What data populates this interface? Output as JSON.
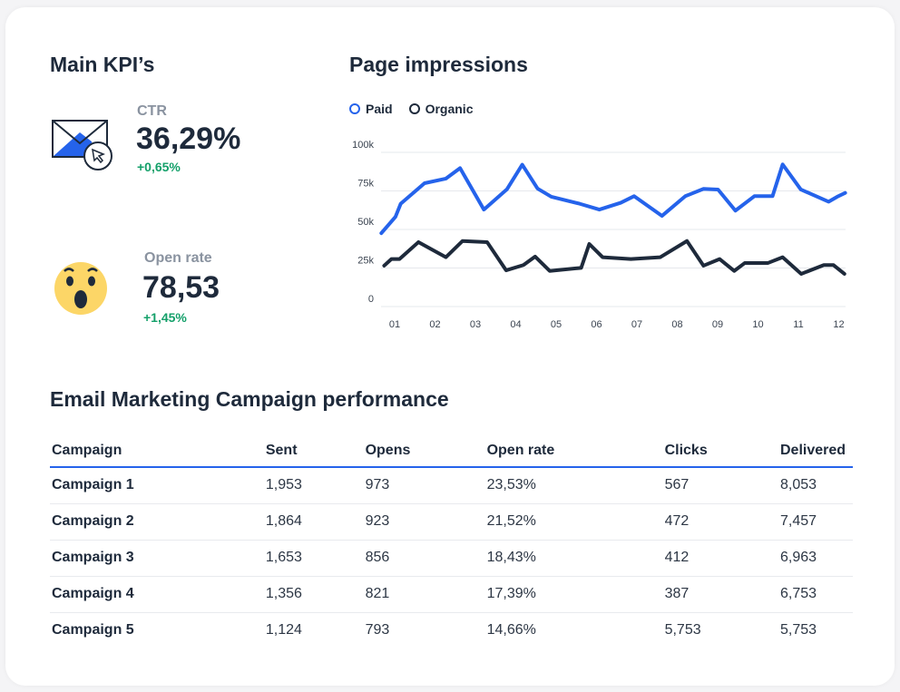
{
  "kpi": {
    "title": "Main KPI’s",
    "ctr": {
      "label": "CTR",
      "value": "36,29%",
      "delta": "+0,65%",
      "icon": "envelope-click-icon"
    },
    "open_rate": {
      "label": "Open rate",
      "value": "78,53",
      "delta": "+1,45%",
      "icon": "surprised-emoji-icon"
    }
  },
  "chart_title": "Page impressions",
  "chart_data": {
    "type": "line",
    "title": "Page impressions",
    "legend": "top-left",
    "grid": true,
    "x_ticks": [
      "01",
      "02",
      "03",
      "04",
      "05",
      "06",
      "07",
      "08",
      "09",
      "10",
      "11",
      "12"
    ],
    "y_ticks": [
      "0",
      "25k",
      "50k",
      "75k",
      "100k"
    ],
    "ylim": [
      0,
      100000
    ],
    "xlim": [
      0.6,
      12.2
    ],
    "series": [
      {
        "name": "Paid",
        "color": "#2563eb",
        "points": [
          [
            0.67,
            47600
          ],
          [
            1.02,
            58200
          ],
          [
            1.15,
            66700
          ],
          [
            1.74,
            80000
          ],
          [
            2.27,
            83000
          ],
          [
            2.62,
            89800
          ],
          [
            3.21,
            62900
          ],
          [
            3.78,
            76000
          ],
          [
            4.16,
            92000
          ],
          [
            4.54,
            76500
          ],
          [
            4.88,
            71200
          ],
          [
            5.58,
            66700
          ],
          [
            6.07,
            62900
          ],
          [
            6.6,
            67300
          ],
          [
            6.93,
            71600
          ],
          [
            7.62,
            58800
          ],
          [
            8.2,
            71600
          ],
          [
            8.65,
            76300
          ],
          [
            9.01,
            75900
          ],
          [
            9.44,
            62200
          ],
          [
            9.91,
            71600
          ],
          [
            10.36,
            71600
          ],
          [
            10.61,
            92200
          ],
          [
            11.06,
            75900
          ],
          [
            11.75,
            68000
          ],
          [
            11.96,
            71200
          ],
          [
            12.16,
            73700
          ]
        ]
      },
      {
        "name": "Organic",
        "color": "#1e2a3b",
        "points": [
          [
            0.74,
            26500
          ],
          [
            0.92,
            30800
          ],
          [
            1.12,
            30800
          ],
          [
            1.59,
            41800
          ],
          [
            2.27,
            32000
          ],
          [
            2.68,
            42500
          ],
          [
            3.29,
            41800
          ],
          [
            3.76,
            23500
          ],
          [
            4.19,
            26900
          ],
          [
            4.48,
            32400
          ],
          [
            4.84,
            23100
          ],
          [
            5.62,
            25100
          ],
          [
            5.82,
            40600
          ],
          [
            6.15,
            32000
          ],
          [
            6.85,
            30800
          ],
          [
            7.58,
            32000
          ],
          [
            8.24,
            42500
          ],
          [
            8.65,
            26500
          ],
          [
            9.05,
            30800
          ],
          [
            9.41,
            23100
          ],
          [
            9.67,
            28200
          ],
          [
            10.24,
            28200
          ],
          [
            10.61,
            32000
          ],
          [
            11.07,
            21200
          ],
          [
            11.63,
            26900
          ],
          [
            11.87,
            26900
          ],
          [
            12.14,
            21200
          ]
        ]
      }
    ]
  },
  "table": {
    "title": "Email Marketing Campaign performance",
    "headers": [
      "Campaign",
      "Sent",
      "Opens",
      "Open rate",
      "Clicks",
      "Delivered"
    ],
    "rows": [
      [
        "Campaign 1",
        "1,953",
        "973",
        "23,53%",
        "567",
        "8,053"
      ],
      [
        "Campaign 2",
        "1,864",
        "923",
        "21,52%",
        "472",
        "7,457"
      ],
      [
        "Campaign 3",
        "1,653",
        "856",
        "18,43%",
        "412",
        "6,963"
      ],
      [
        "Campaign 4",
        "1,356",
        "821",
        "17,39%",
        "387",
        "6,753"
      ],
      [
        "Campaign 5",
        "1,124",
        "793",
        "14,66%",
        "5,753",
        "5,753"
      ]
    ]
  }
}
